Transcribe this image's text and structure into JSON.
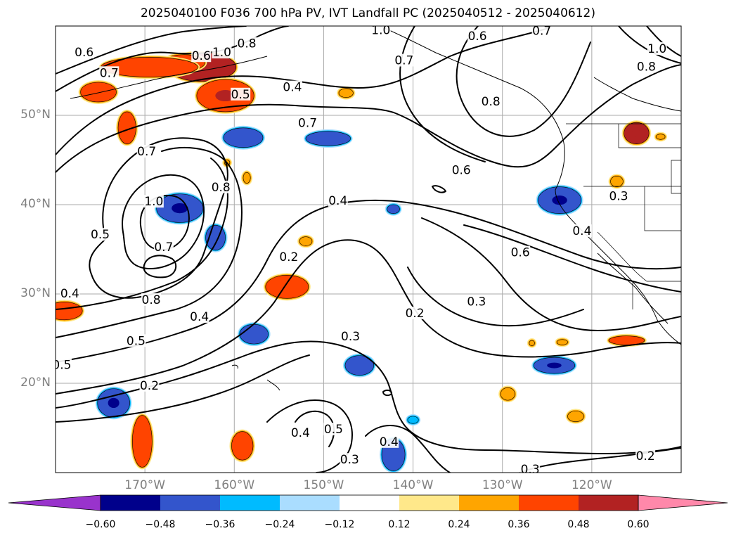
{
  "title": "2025040100 F036 700 hPa PV, IVT Landfall PC (2025040512 - 2025040612)",
  "map": {
    "projection": "plate-carree",
    "lon_range": [
      -180,
      -110
    ],
    "lat_range": [
      10,
      60
    ],
    "gridlines": true,
    "coastlines": true,
    "lon_labels": [
      {
        "lon": -170,
        "text": "170°W"
      },
      {
        "lon": -160,
        "text": "160°W"
      },
      {
        "lon": -150,
        "text": "150°W"
      },
      {
        "lon": -140,
        "text": "140°W"
      },
      {
        "lon": -130,
        "text": "130°W"
      },
      {
        "lon": -120,
        "text": "120°W"
      }
    ],
    "lat_labels": [
      {
        "lat": 50,
        "text": "50°N"
      },
      {
        "lat": 40,
        "text": "40°N"
      },
      {
        "lat": 30,
        "text": "30°N"
      },
      {
        "lat": 20,
        "text": "20°N"
      }
    ]
  },
  "colorbar": {
    "extend": "both",
    "colors": [
      "#9933cc",
      "#00008b",
      "#3355cc",
      "#00bbff",
      "#aaddff",
      "#ffffff",
      "#ffe88a",
      "#ffa500",
      "#ff4400",
      "#b22222",
      "#ff88aa"
    ],
    "ticks": [
      "−0.60",
      "−0.48",
      "−0.36",
      "−0.24",
      "−0.12",
      "0.12",
      "0.24",
      "0.36",
      "0.48",
      "0.60"
    ]
  },
  "pv_contour_labels": [
    {
      "text": "1.0",
      "lon": -161.4,
      "lat": 57.0
    },
    {
      "text": "0.6",
      "lon": -176.8,
      "lat": 57.0
    },
    {
      "text": "0.7",
      "lon": -174.0,
      "lat": 54.7
    },
    {
      "text": "0.6",
      "lon": -163.7,
      "lat": 56.6
    },
    {
      "text": "0.8",
      "lon": -158.6,
      "lat": 58.0
    },
    {
      "text": "1.0",
      "lon": -143.6,
      "lat": 59.5
    },
    {
      "text": "0.6",
      "lon": -132.8,
      "lat": 58.8
    },
    {
      "text": "0.7",
      "lon": -125.6,
      "lat": 59.4
    },
    {
      "text": "1.0",
      "lon": -112.7,
      "lat": 57.4
    },
    {
      "text": "0.8",
      "lon": -113.9,
      "lat": 55.4
    },
    {
      "text": "0.7",
      "lon": -141.0,
      "lat": 56.1
    },
    {
      "text": "0.5",
      "lon": -159.3,
      "lat": 52.3
    },
    {
      "text": "0.4",
      "lon": -153.5,
      "lat": 53.1
    },
    {
      "text": "0.8",
      "lon": -131.3,
      "lat": 51.5
    },
    {
      "text": "0.7",
      "lon": -151.8,
      "lat": 49.1
    },
    {
      "text": "0.7",
      "lon": -169.8,
      "lat": 45.9
    },
    {
      "text": "0.6",
      "lon": -134.6,
      "lat": 43.8
    },
    {
      "text": "0.8",
      "lon": -161.5,
      "lat": 41.9
    },
    {
      "text": "1.0",
      "lon": -169.0,
      "lat": 40.3
    },
    {
      "text": "0.4",
      "lon": -148.4,
      "lat": 40.4
    },
    {
      "text": "0.3",
      "lon": -117.0,
      "lat": 40.9
    },
    {
      "text": "0.5",
      "lon": -175.0,
      "lat": 36.6
    },
    {
      "text": "0.4",
      "lon": -121.1,
      "lat": 37.0
    },
    {
      "text": "0.7",
      "lon": -167.9,
      "lat": 35.2
    },
    {
      "text": "0.2",
      "lon": -153.9,
      "lat": 34.1
    },
    {
      "text": "0.6",
      "lon": -128.0,
      "lat": 34.6
    },
    {
      "text": "0.4",
      "lon": -178.4,
      "lat": 30.0
    },
    {
      "text": "0.8",
      "lon": -169.3,
      "lat": 29.3
    },
    {
      "text": "0.3",
      "lon": -132.9,
      "lat": 29.1
    },
    {
      "text": "0.2",
      "lon": -139.8,
      "lat": 27.8
    },
    {
      "text": "0.4",
      "lon": -163.9,
      "lat": 27.4
    },
    {
      "text": "0.3",
      "lon": -147.0,
      "lat": 25.2
    },
    {
      "text": "0.5",
      "lon": -171.0,
      "lat": 24.7
    },
    {
      "text": "0.5",
      "lon": -179.3,
      "lat": 22.0
    },
    {
      "text": "0.2",
      "lon": -169.5,
      "lat": 19.7
    },
    {
      "text": "0.5",
      "lon": -148.9,
      "lat": 14.8
    },
    {
      "text": "0.4",
      "lon": -152.6,
      "lat": 14.4
    },
    {
      "text": "0.4",
      "lon": -142.7,
      "lat": 13.4
    },
    {
      "text": "0.3",
      "lon": -147.1,
      "lat": 11.4
    },
    {
      "text": "0.3",
      "lon": -126.9,
      "lat": 10.3
    },
    {
      "text": "0.2",
      "lon": -114.0,
      "lat": 11.8
    }
  ],
  "ivt_pc_anomalies": [
    {
      "lon": -163.6,
      "lat": 55.4,
      "value": 0.5,
      "rx": 3.8,
      "ry": 1.6
    },
    {
      "lon": -165.6,
      "lat": 55.9,
      "value": 0.4,
      "rx": 2.3,
      "ry": 0.9
    },
    {
      "lon": -169.5,
      "lat": 55.4,
      "value": 0.4,
      "rx": 5.4,
      "ry": 1.1
    },
    {
      "lon": -175.2,
      "lat": 52.6,
      "value": 0.4,
      "rx": 2.0,
      "ry": 1.1
    },
    {
      "lon": -161.0,
      "lat": 52.2,
      "value": 0.42,
      "rx": 3.2,
      "ry": 1.8
    },
    {
      "lon": -147.5,
      "lat": 52.5,
      "value": 0.33,
      "rx": 0.8,
      "ry": 0.5
    },
    {
      "lon": -172.0,
      "lat": 48.6,
      "value": 0.4,
      "rx": 1.0,
      "ry": 1.8
    },
    {
      "lon": -159.0,
      "lat": 47.5,
      "value": -0.36,
      "rx": 2.2,
      "ry": 1.1
    },
    {
      "lon": -149.5,
      "lat": 47.4,
      "value": -0.36,
      "rx": 2.5,
      "ry": 0.8
    },
    {
      "lon": -166.1,
      "lat": 39.6,
      "value": -0.42,
      "rx": 2.6,
      "ry": 1.6
    },
    {
      "lon": -162.1,
      "lat": 36.3,
      "value": -0.36,
      "rx": 1.1,
      "ry": 1.4
    },
    {
      "lon": -142.2,
      "lat": 39.5,
      "value": -0.36,
      "rx": 0.7,
      "ry": 0.5
    },
    {
      "lon": -123.6,
      "lat": 40.5,
      "value": -0.45,
      "rx": 2.4,
      "ry": 1.5
    },
    {
      "lon": -154.1,
      "lat": 30.8,
      "value": 0.38,
      "rx": 2.4,
      "ry": 1.3
    },
    {
      "lon": -152.0,
      "lat": 35.9,
      "value": 0.33,
      "rx": 0.7,
      "ry": 0.5
    },
    {
      "lon": -158.6,
      "lat": 43.0,
      "value": 0.33,
      "rx": 0.4,
      "ry": 0.6
    },
    {
      "lon": -160.8,
      "lat": 44.7,
      "value": 0.3,
      "rx": 0.3,
      "ry": 0.3
    },
    {
      "lon": -179.0,
      "lat": 28.1,
      "value": 0.38,
      "rx": 2.0,
      "ry": 1.0
    },
    {
      "lon": -157.8,
      "lat": 25.5,
      "value": -0.36,
      "rx": 1.6,
      "ry": 1.1
    },
    {
      "lon": -146.0,
      "lat": 22.0,
      "value": -0.36,
      "rx": 1.6,
      "ry": 1.1
    },
    {
      "lon": -124.2,
      "lat": 22.0,
      "value": -0.42,
      "rx": 2.3,
      "ry": 0.9
    },
    {
      "lon": -116.1,
      "lat": 24.8,
      "value": 0.36,
      "rx": 2.0,
      "ry": 0.5
    },
    {
      "lon": -129.4,
      "lat": 18.8,
      "value": 0.33,
      "rx": 0.8,
      "ry": 0.7
    },
    {
      "lon": -121.8,
      "lat": 16.3,
      "value": 0.33,
      "rx": 0.9,
      "ry": 0.6
    },
    {
      "lon": -173.5,
      "lat": 17.8,
      "value": -0.45,
      "rx": 1.8,
      "ry": 1.6
    },
    {
      "lon": -170.3,
      "lat": 13.5,
      "value": 0.38,
      "rx": 1.1,
      "ry": 2.9
    },
    {
      "lon": -159.1,
      "lat": 13.0,
      "value": 0.36,
      "rx": 1.2,
      "ry": 1.6
    },
    {
      "lon": -142.2,
      "lat": 12.0,
      "value": -0.36,
      "rx": 1.3,
      "ry": 1.8
    },
    {
      "lon": -140.0,
      "lat": 15.9,
      "value": -0.3,
      "rx": 0.6,
      "ry": 0.4
    },
    {
      "lon": -115.0,
      "lat": 48.0,
      "value": 0.5,
      "rx": 1.4,
      "ry": 1.2
    },
    {
      "lon": -112.3,
      "lat": 47.6,
      "value": 0.33,
      "rx": 0.5,
      "ry": 0.3
    },
    {
      "lon": -117.2,
      "lat": 42.6,
      "value": 0.33,
      "rx": 0.7,
      "ry": 0.6
    },
    {
      "lon": -123.3,
      "lat": 24.6,
      "value": 0.33,
      "rx": 0.6,
      "ry": 0.3
    },
    {
      "lon": -126.7,
      "lat": 24.5,
      "value": 0.3,
      "rx": 0.3,
      "ry": 0.3
    }
  ]
}
